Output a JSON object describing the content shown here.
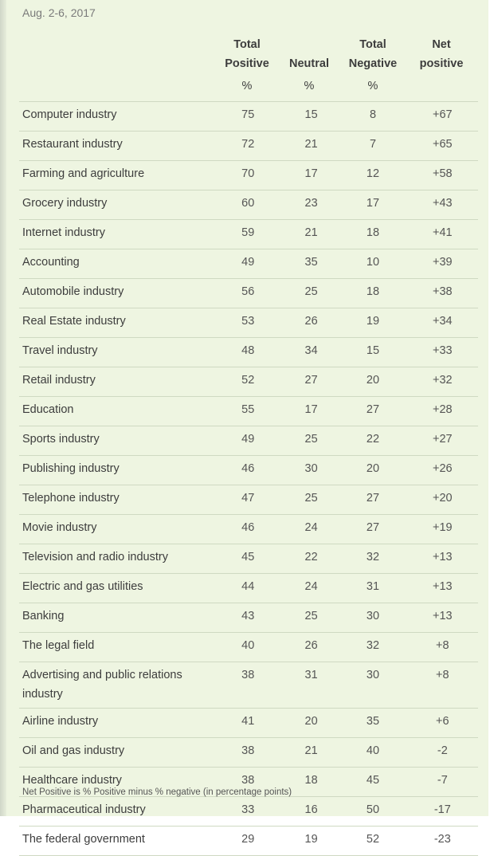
{
  "date_range": "Aug. 2-6, 2017",
  "columns": [
    {
      "line1": "Total",
      "line2": "Positive",
      "unit": "%"
    },
    {
      "line1": "",
      "line2": "Neutral",
      "unit": "%"
    },
    {
      "line1": "Total",
      "line2": "Negative",
      "unit": "%"
    },
    {
      "line1": "Net",
      "line2": "positive",
      "unit": ""
    }
  ],
  "footnote": "Net Positive is % Positive minus % negative (in percentage points)",
  "chart_data": {
    "type": "table",
    "title": "",
    "headers": [
      "Total Positive %",
      "Neutral %",
      "Total Negative %",
      "Net positive"
    ],
    "rows": [
      {
        "industry": "Computer industry",
        "positive": "75",
        "neutral": "15",
        "negative": "8",
        "net": "+67"
      },
      {
        "industry": "Restaurant industry",
        "positive": "72",
        "neutral": "21",
        "negative": "7",
        "net": "+65"
      },
      {
        "industry": "Farming and agriculture",
        "positive": "70",
        "neutral": "17",
        "negative": "12",
        "net": "+58"
      },
      {
        "industry": "Grocery industry",
        "positive": "60",
        "neutral": "23",
        "negative": "17",
        "net": "+43"
      },
      {
        "industry": "Internet industry",
        "positive": "59",
        "neutral": "21",
        "negative": "18",
        "net": "+41"
      },
      {
        "industry": "Accounting",
        "positive": "49",
        "neutral": "35",
        "negative": "10",
        "net": "+39"
      },
      {
        "industry": "Automobile industry",
        "positive": "56",
        "neutral": "25",
        "negative": "18",
        "net": "+38"
      },
      {
        "industry": "Real Estate industry",
        "positive": "53",
        "neutral": "26",
        "negative": "19",
        "net": "+34"
      },
      {
        "industry": "Travel industry",
        "positive": "48",
        "neutral": "34",
        "negative": "15",
        "net": "+33"
      },
      {
        "industry": "Retail industry",
        "positive": "52",
        "neutral": "27",
        "negative": "20",
        "net": "+32"
      },
      {
        "industry": "Education",
        "positive": "55",
        "neutral": "17",
        "negative": "27",
        "net": "+28"
      },
      {
        "industry": "Sports industry",
        "positive": "49",
        "neutral": "25",
        "negative": "22",
        "net": "+27"
      },
      {
        "industry": "Publishing industry",
        "positive": "46",
        "neutral": "30",
        "negative": "20",
        "net": "+26"
      },
      {
        "industry": "Telephone industry",
        "positive": "47",
        "neutral": "25",
        "negative": "27",
        "net": "+20"
      },
      {
        "industry": "Movie industry",
        "positive": "46",
        "neutral": "24",
        "negative": "27",
        "net": "+19"
      },
      {
        "industry": "Television and radio industry",
        "positive": "45",
        "neutral": "22",
        "negative": "32",
        "net": "+13"
      },
      {
        "industry": "Electric and gas utilities",
        "positive": "44",
        "neutral": "24",
        "negative": "31",
        "net": "+13"
      },
      {
        "industry": "Banking",
        "positive": "43",
        "neutral": "25",
        "negative": "30",
        "net": "+13"
      },
      {
        "industry": "The legal field",
        "positive": "40",
        "neutral": "26",
        "negative": "32",
        "net": "+8"
      },
      {
        "industry": "Advertising and public relations industry",
        "positive": "38",
        "neutral": "31",
        "negative": "30",
        "net": "+8"
      },
      {
        "industry": "Airline industry",
        "positive": "41",
        "neutral": "20",
        "negative": "35",
        "net": "+6"
      },
      {
        "industry": "Oil and gas industry",
        "positive": "38",
        "neutral": "21",
        "negative": "40",
        "net": "-2"
      },
      {
        "industry": "Healthcare industry",
        "positive": "38",
        "neutral": "18",
        "negative": "45",
        "net": "-7"
      },
      {
        "industry": "Pharmaceutical industry",
        "positive": "33",
        "neutral": "16",
        "negative": "50",
        "net": "-17"
      },
      {
        "industry": "The federal government",
        "positive": "29",
        "neutral": "19",
        "negative": "52",
        "net": "-23"
      }
    ]
  }
}
